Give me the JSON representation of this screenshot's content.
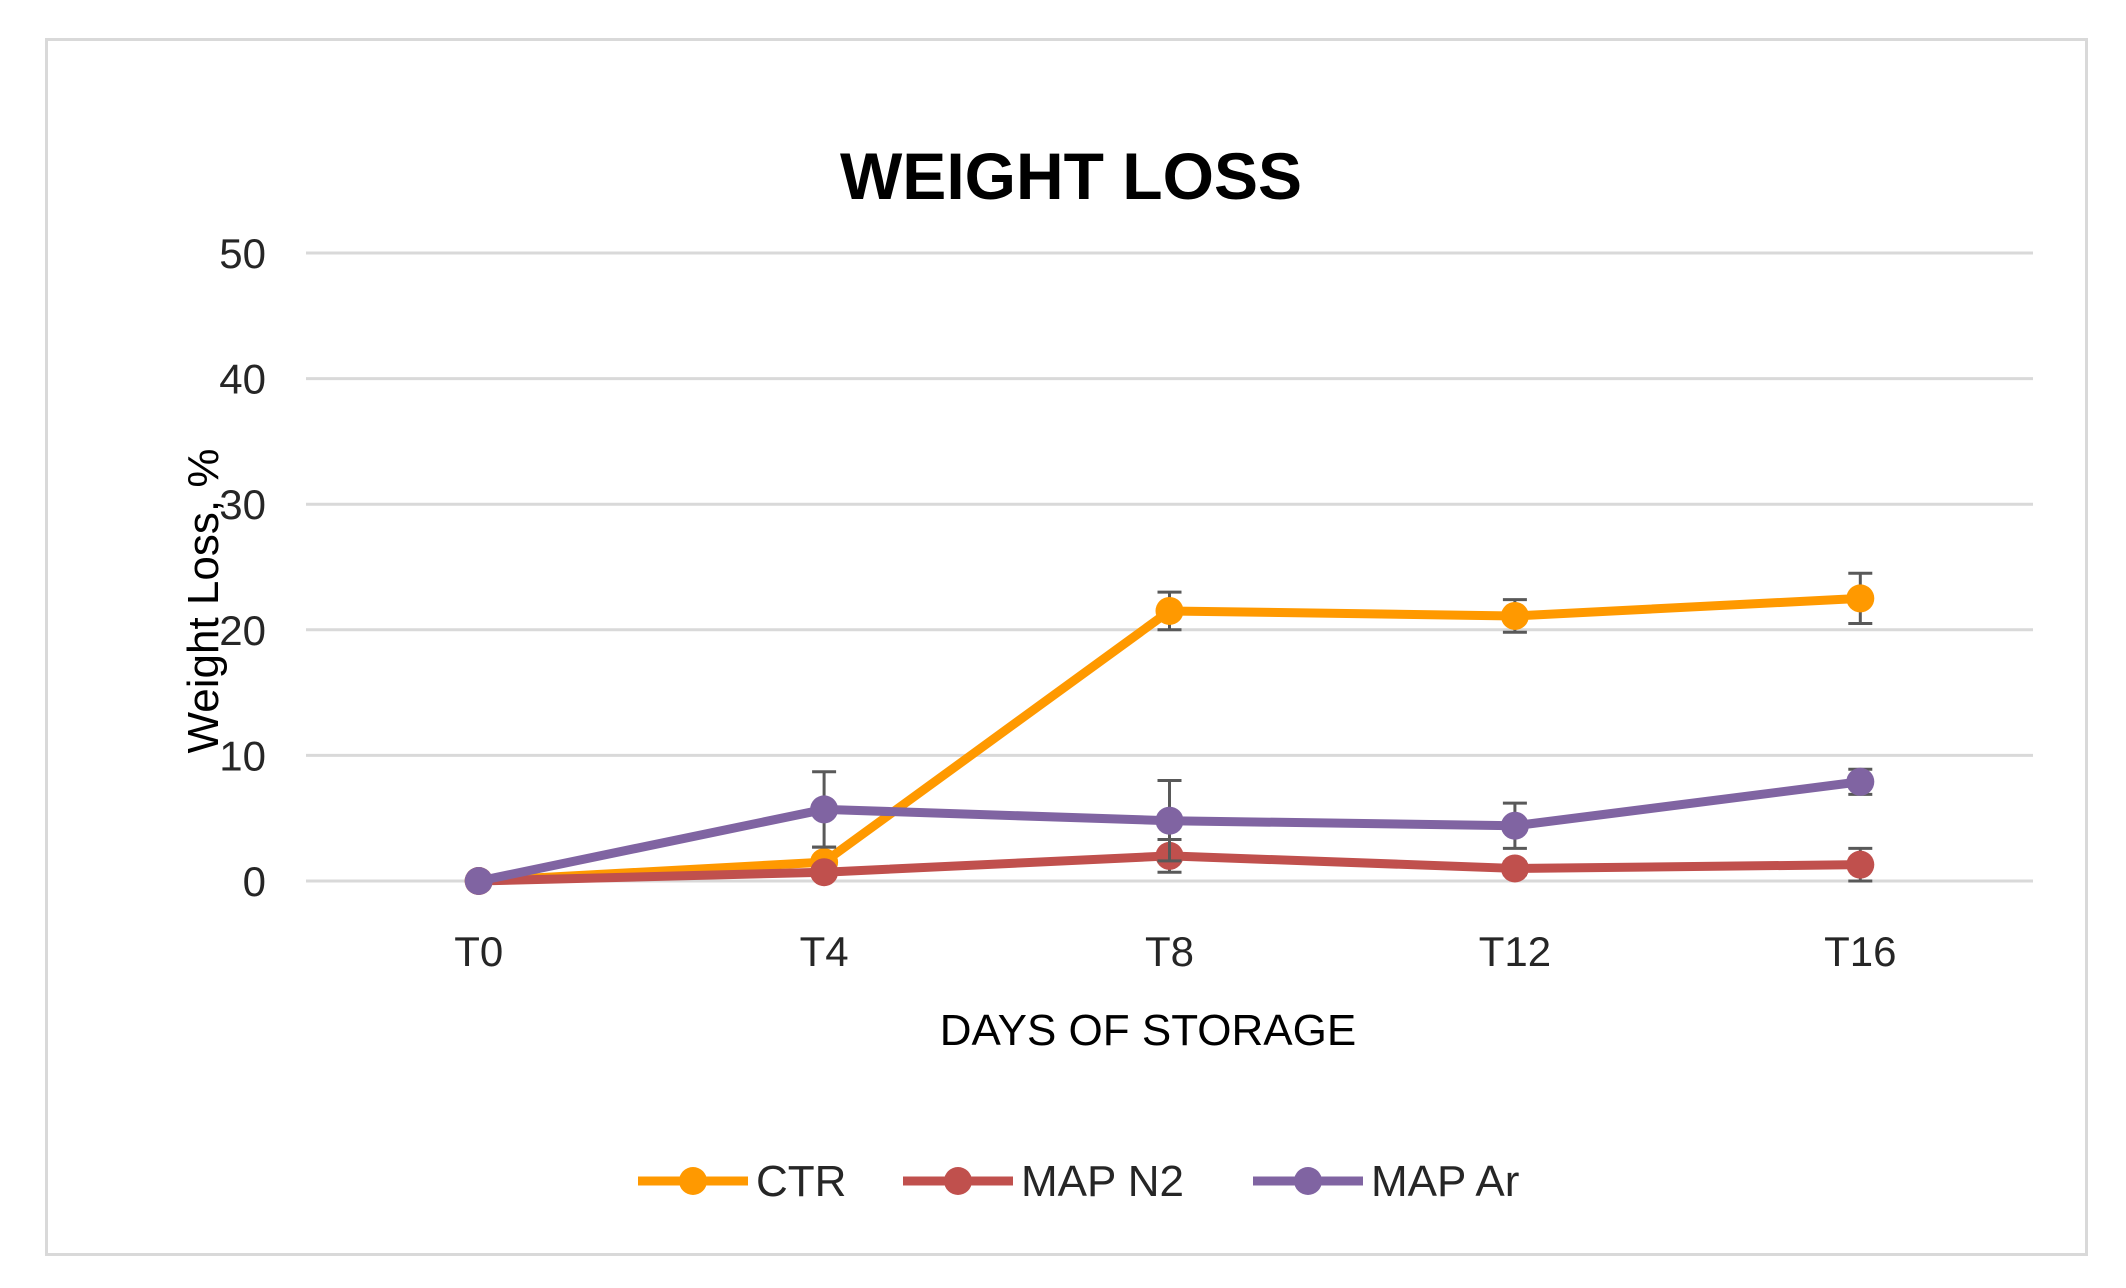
{
  "chart_data": {
    "type": "line",
    "title": "WEIGHT LOSS",
    "xlabel": "DAYS OF STORAGE",
    "ylabel": "Weight Loss, %",
    "categories": [
      "T0",
      "T4",
      "T8",
      "T12",
      "T16"
    ],
    "ylim": [
      0,
      50
    ],
    "yticks": [
      0,
      10,
      20,
      30,
      40,
      50
    ],
    "grid": true,
    "legend_position": "bottom",
    "series": [
      {
        "name": "CTR",
        "color": "#ff9900",
        "values": [
          0,
          1.5,
          21.5,
          21.1,
          22.5
        ],
        "errors": [
          0,
          1.2,
          1.5,
          1.3,
          2.0
        ]
      },
      {
        "name": "MAP N2",
        "color": "#c0504d",
        "values": [
          0,
          0.7,
          2.0,
          1.0,
          1.3
        ],
        "errors": [
          0,
          0.4,
          1.3,
          0.5,
          1.3
        ]
      },
      {
        "name": "MAP Ar",
        "color": "#8064a2",
        "values": [
          0,
          5.7,
          4.8,
          4.4,
          7.9
        ],
        "errors": [
          0,
          3.0,
          3.2,
          1.8,
          1.0
        ]
      }
    ]
  }
}
